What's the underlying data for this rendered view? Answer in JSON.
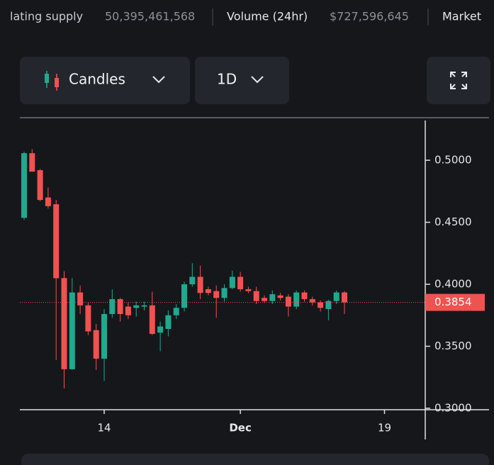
{
  "toolbar": {
    "stats": [
      {
        "label": "lating supply",
        "value": "50,395,461,568"
      },
      {
        "label": "Volume (24hr)",
        "value": "$727,596,645"
      },
      {
        "label": "Market"
      }
    ],
    "chart_style": "Candles",
    "interval": "1D"
  },
  "chart_data": {
    "type": "candlestick",
    "categories": [
      null,
      null,
      null,
      null,
      null,
      null,
      null,
      null,
      null,
      null,
      "14",
      null,
      null,
      null,
      null,
      null,
      null,
      null,
      null,
      null,
      null,
      null,
      null,
      null,
      null,
      null,
      null,
      "Dec",
      null,
      null,
      null,
      null,
      null,
      null,
      null,
      null,
      null,
      null,
      null,
      null,
      null,
      null,
      null,
      null,
      null,
      "19",
      null,
      null,
      null,
      null
    ],
    "open": [
      0.4536,
      0.5057,
      0.492,
      0.47,
      0.4645,
      0.405,
      0.3315,
      0.3934,
      0.383,
      0.363,
      0.34,
      0.376,
      0.388,
      0.382,
      0.381,
      0.382,
      0.383,
      0.361,
      0.364,
      0.375,
      0.381,
      0.4,
      0.406,
      0.396,
      0.3945,
      0.389,
      0.397,
      0.406,
      0.396,
      0.3945,
      0.389,
      0.3865,
      0.391,
      0.39,
      0.382,
      0.3934,
      0.388,
      0.3854,
      0.38,
      0.3865,
      0.3934,
      null,
      null,
      null,
      null,
      null,
      null,
      null,
      null,
      null
    ],
    "high": [
      0.507,
      0.509,
      0.493,
      0.478,
      0.468,
      0.4106,
      0.405,
      0.399,
      0.385,
      0.368,
      0.38,
      0.396,
      0.389,
      0.385,
      0.386,
      0.386,
      0.394,
      0.37,
      0.379,
      0.384,
      0.402,
      0.417,
      0.415,
      0.398,
      0.399,
      0.4,
      0.411,
      0.41,
      0.398,
      0.398,
      0.391,
      0.395,
      0.393,
      0.392,
      0.395,
      0.395,
      0.39,
      0.387,
      0.3875,
      0.395,
      0.3945,
      null,
      null,
      null,
      null,
      null,
      null,
      null,
      null,
      null
    ],
    "low": [
      0.452,
      0.4908,
      0.467,
      0.461,
      0.339,
      0.316,
      0.331,
      0.376,
      0.359,
      0.331,
      0.322,
      0.373,
      0.37,
      0.372,
      0.374,
      0.379,
      0.359,
      0.346,
      0.358,
      0.372,
      0.378,
      0.398,
      0.388,
      0.391,
      0.373,
      0.386,
      0.396,
      0.394,
      0.393,
      0.384,
      0.385,
      0.384,
      0.387,
      0.374,
      0.38,
      0.386,
      0.383,
      0.378,
      0.371,
      0.384,
      0.376,
      null,
      null,
      null,
      null,
      null,
      null,
      null,
      null,
      null
    ],
    "close": [
      0.5057,
      0.4908,
      0.468,
      0.463,
      0.4049,
      0.3315,
      0.3934,
      0.383,
      0.362,
      0.34,
      0.376,
      0.388,
      0.376,
      0.375,
      0.383,
      0.383,
      0.36,
      0.366,
      0.375,
      0.381,
      0.4,
      0.406,
      0.393,
      0.393,
      0.389,
      0.397,
      0.406,
      0.396,
      0.3945,
      0.3865,
      0.3865,
      0.392,
      0.389,
      0.382,
      0.3934,
      0.388,
      0.3854,
      0.381,
      0.3865,
      0.3934,
      0.3854,
      null,
      null,
      null,
      null,
      null,
      null,
      null,
      null,
      null
    ],
    "up_color": "#22a88f",
    "down_color": "#ef5350",
    "ylim": [
      0.2977,
      0.5235
    ],
    "yticks": [
      {
        "value": 0.5,
        "label": "0.5000"
      },
      {
        "value": 0.45,
        "label": "0.4500"
      },
      {
        "value": 0.4,
        "label": "0.4000"
      },
      {
        "value": 0.35,
        "label": "0.3500"
      },
      {
        "value": 0.3,
        "label": "0.3000"
      }
    ],
    "last_price": 0.3854
  }
}
